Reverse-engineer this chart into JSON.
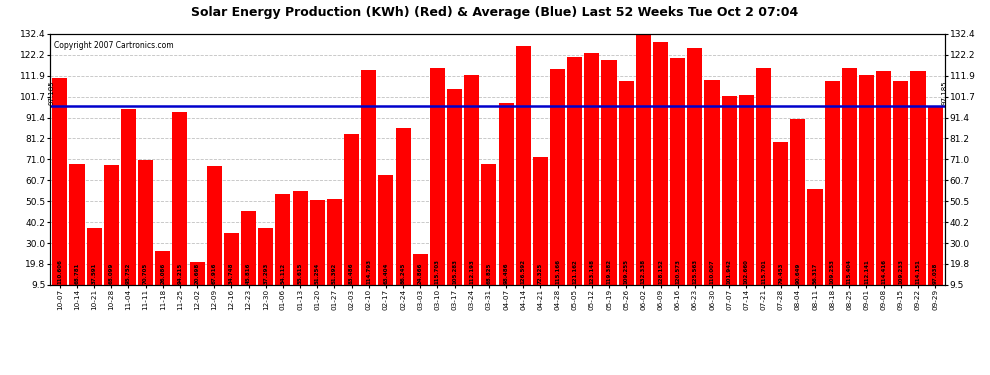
{
  "title": "Solar Energy Production (KWh) (Red) & Average (Blue) Last 52 Weeks Tue Oct 2 07:04",
  "copyright": "Copyright 2007 Cartronics.com",
  "average": 97.185,
  "bar_color": "#ff0000",
  "avg_line_color": "#0000cc",
  "background_color": "#ffffff",
  "plot_bg_color": "#ffffff",
  "grid_color": "#bbbbbb",
  "ymin": 9.5,
  "ymax": 132.4,
  "yticks": [
    9.5,
    19.8,
    30.0,
    40.2,
    50.5,
    60.7,
    71.0,
    81.2,
    91.4,
    101.7,
    111.9,
    122.2,
    132.4
  ],
  "categories": [
    "10-07",
    "10-14",
    "10-21",
    "10-28",
    "11-04",
    "11-11",
    "11-18",
    "11-25",
    "12-02",
    "12-09",
    "12-16",
    "12-23",
    "12-30",
    "01-06",
    "01-13",
    "01-20",
    "01-27",
    "02-03",
    "02-10",
    "02-17",
    "02-24",
    "03-03",
    "03-10",
    "03-17",
    "03-24",
    "03-31",
    "04-07",
    "04-14",
    "04-21",
    "04-28",
    "05-05",
    "05-12",
    "05-19",
    "05-26",
    "06-02",
    "06-09",
    "06-16",
    "06-23",
    "06-30",
    "07-07",
    "07-14",
    "07-21",
    "07-28",
    "08-04",
    "08-11",
    "08-18",
    "08-25",
    "09-01",
    "09-08",
    "09-15",
    "09-22",
    "09-29"
  ],
  "values": [
    110.606,
    68.781,
    37.591,
    68.099,
    95.752,
    70.705,
    26.086,
    94.215,
    20.698,
    67.916,
    34.748,
    45.816,
    37.293,
    54.112,
    55.615,
    51.254,
    51.392,
    83.486,
    114.793,
    63.404,
    86.245,
    24.866,
    115.703,
    105.283,
    112.193,
    68.825,
    98.486,
    126.592,
    72.325,
    115.166,
    121.162,
    123.148,
    119.382,
    109.255,
    132.338,
    128.152,
    120.573,
    125.563,
    110.007,
    101.942,
    102.66,
    115.701,
    79.453,
    90.649,
    56.317,
    109.253,
    115.404,
    112.141,
    114.416,
    109.233,
    114.151,
    97.038
  ]
}
